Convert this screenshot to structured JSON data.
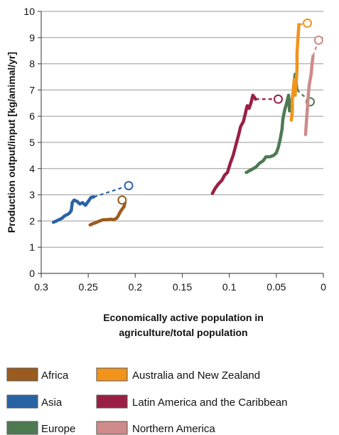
{
  "chart_data": {
    "type": "line",
    "xlabel_lines": [
      "Economically active population in",
      "agriculture/total population"
    ],
    "ylabel": "Production output/input [kg/animal/yr]",
    "x_reversed": true,
    "xlim": [
      0,
      0.3
    ],
    "ylim": [
      0,
      10
    ],
    "x_ticks": [
      "0.3",
      "0.25",
      "0.2",
      "0.15",
      "0.1",
      "0.05",
      "0"
    ],
    "x_tick_values": [
      0.3,
      0.25,
      0.2,
      0.15,
      0.1,
      0.05,
      0
    ],
    "y_ticks": [
      "0",
      "1",
      "2",
      "3",
      "4",
      "5",
      "6",
      "7",
      "8",
      "9",
      "10"
    ],
    "y_tick_values": [
      0,
      1,
      2,
      3,
      4,
      5,
      6,
      7,
      8,
      9,
      10
    ],
    "grid": "horizontal",
    "legend_placement": "bottom",
    "series": [
      {
        "name": "Africa",
        "color": "#9a5b1e",
        "points": [
          [
            0.248,
            1.85
          ],
          [
            0.245,
            1.9
          ],
          [
            0.241,
            1.95
          ],
          [
            0.238,
            2.0
          ],
          [
            0.234,
            2.05
          ],
          [
            0.23,
            2.05
          ],
          [
            0.226,
            2.07
          ],
          [
            0.223,
            2.05
          ],
          [
            0.22,
            2.1
          ],
          [
            0.218,
            2.2
          ],
          [
            0.216,
            2.35
          ],
          [
            0.214,
            2.45
          ],
          [
            0.212,
            2.55
          ],
          [
            0.211,
            2.7
          ]
        ],
        "projection_end": [
          0.214,
          2.8
        ]
      },
      {
        "name": "Asia",
        "color": "#2a63a4",
        "points": [
          [
            0.287,
            1.95
          ],
          [
            0.284,
            2.0
          ],
          [
            0.281,
            2.05
          ],
          [
            0.278,
            2.1
          ],
          [
            0.275,
            2.2
          ],
          [
            0.272,
            2.25
          ],
          [
            0.27,
            2.3
          ],
          [
            0.268,
            2.4
          ],
          [
            0.267,
            2.7
          ],
          [
            0.265,
            2.8
          ],
          [
            0.262,
            2.75
          ],
          [
            0.259,
            2.65
          ],
          [
            0.256,
            2.7
          ],
          [
            0.253,
            2.6
          ],
          [
            0.25,
            2.75
          ],
          [
            0.247,
            2.9
          ],
          [
            0.244,
            2.92
          ]
        ],
        "projection_end": [
          0.207,
          3.35
        ]
      },
      {
        "name": "Europe",
        "color": "#4e7a52",
        "points": [
          [
            0.082,
            3.85
          ],
          [
            0.077,
            3.95
          ],
          [
            0.072,
            4.05
          ],
          [
            0.068,
            4.2
          ],
          [
            0.064,
            4.3
          ],
          [
            0.061,
            4.45
          ],
          [
            0.057,
            4.45
          ],
          [
            0.053,
            4.5
          ],
          [
            0.05,
            4.6
          ],
          [
            0.048,
            4.8
          ],
          [
            0.046,
            5.1
          ],
          [
            0.044,
            5.5
          ],
          [
            0.043,
            5.9
          ],
          [
            0.041,
            6.25
          ],
          [
            0.039,
            6.5
          ],
          [
            0.037,
            6.8
          ],
          [
            0.036,
            6.2
          ],
          [
            0.034,
            6.5
          ],
          [
            0.032,
            6.9
          ],
          [
            0.031,
            7.3
          ],
          [
            0.03,
            7.6
          ],
          [
            0.028,
            7.0
          ]
        ],
        "projection_end": [
          0.014,
          6.55
        ]
      },
      {
        "name": "Australia and New Zealand",
        "color": "#f2931c",
        "points": [
          [
            0.034,
            5.85
          ],
          [
            0.033,
            6.2
          ],
          [
            0.033,
            6.6
          ],
          [
            0.032,
            7.0
          ],
          [
            0.031,
            7.4
          ],
          [
            0.03,
            6.8
          ],
          [
            0.029,
            7.2
          ],
          [
            0.028,
            7.8
          ],
          [
            0.028,
            8.4
          ],
          [
            0.027,
            9.0
          ],
          [
            0.026,
            9.5
          ]
        ],
        "projection_end": [
          0.017,
          9.55
        ]
      },
      {
        "name": "Latin America and the Caribbean",
        "color": "#9b1f45",
        "points": [
          [
            0.118,
            3.05
          ],
          [
            0.115,
            3.25
          ],
          [
            0.112,
            3.4
          ],
          [
            0.108,
            3.55
          ],
          [
            0.105,
            3.75
          ],
          [
            0.102,
            3.85
          ],
          [
            0.099,
            4.2
          ],
          [
            0.096,
            4.5
          ],
          [
            0.093,
            4.9
          ],
          [
            0.09,
            5.3
          ],
          [
            0.088,
            5.6
          ],
          [
            0.085,
            5.8
          ],
          [
            0.083,
            6.1
          ],
          [
            0.081,
            6.4
          ],
          [
            0.079,
            6.3
          ],
          [
            0.077,
            6.5
          ],
          [
            0.075,
            6.8
          ],
          [
            0.072,
            6.65
          ]
        ],
        "projection_end": [
          0.048,
          6.65
        ]
      },
      {
        "name": "Northern America",
        "color": "#cf8a8a",
        "points": [
          [
            0.019,
            5.3
          ],
          [
            0.018,
            5.8
          ],
          [
            0.017,
            6.3
          ],
          [
            0.016,
            6.8
          ],
          [
            0.015,
            7.2
          ],
          [
            0.013,
            7.6
          ],
          [
            0.012,
            8.0
          ],
          [
            0.011,
            8.3
          ]
        ],
        "projection_end": [
          0.005,
          8.9
        ]
      }
    ]
  }
}
